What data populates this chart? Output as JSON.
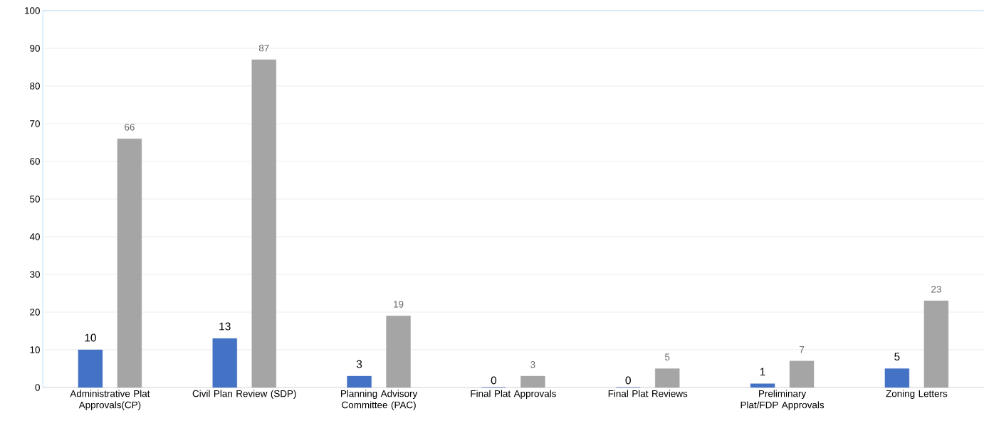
{
  "chart_data": {
    "type": "bar",
    "categories": [
      "Administrative Plat Approvals(CP)",
      "Civil Plan Review (SDP)",
      "Planning Advisory Committee (PAC)",
      "Final Plat Approvals",
      "Final Plat Reviews",
      "Preliminary Plat/FDP Approvals",
      "Zoning Letters"
    ],
    "series": [
      {
        "color": "#4472c4",
        "values": [
          10,
          13,
          3,
          0,
          0,
          1,
          5
        ]
      },
      {
        "color": "#a5a5a5",
        "values": [
          66,
          87,
          19,
          3,
          5,
          7,
          23
        ]
      }
    ],
    "ylim": [
      0,
      100
    ],
    "yticks": [
      0,
      10,
      20,
      30,
      40,
      50,
      60,
      70,
      80,
      90,
      100
    ],
    "grid": "y",
    "data_labels": true
  }
}
